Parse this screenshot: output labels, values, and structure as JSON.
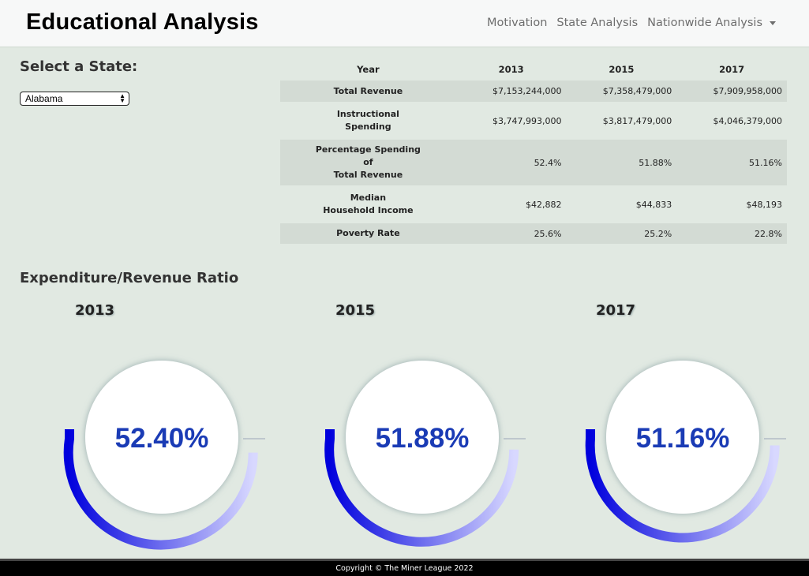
{
  "app": {
    "brand": "Educational Analysis"
  },
  "nav": {
    "items": [
      "Motivation",
      "State Analysis",
      "Nationwide Analysis"
    ]
  },
  "sidebar": {
    "select_label": "Select a State:",
    "selected_state": "Alabama"
  },
  "table": {
    "headers": [
      "Year",
      "2013",
      "2015",
      "2017"
    ],
    "rows": [
      {
        "label": [
          "Total Revenue"
        ],
        "values": [
          "$7,153,244,000",
          "$7,358,479,000",
          "$7,909,958,000"
        ]
      },
      {
        "label": [
          "Instructional",
          "Spending"
        ],
        "values": [
          "$3,747,993,000",
          "$3,817,479,000",
          "$4,046,379,000"
        ]
      },
      {
        "label": [
          "Percentage Spending",
          "of",
          "Total Revenue"
        ],
        "values": [
          "52.4%",
          "51.88%",
          "51.16%"
        ]
      },
      {
        "label": [
          "Median",
          "Household Income"
        ],
        "values": [
          "$42,882",
          "$44,833",
          "$48,193"
        ]
      },
      {
        "label": [
          "Poverty Rate"
        ],
        "values": [
          "25.6%",
          "25.2%",
          "22.8%"
        ]
      }
    ]
  },
  "ratio": {
    "title": "Expenditure/Revenue Ratio",
    "gauges": [
      {
        "year": "2013",
        "value": 52.4,
        "label": "52.40%"
      },
      {
        "year": "2015",
        "value": 51.88,
        "label": "51.88%"
      },
      {
        "year": "2017",
        "value": 51.16,
        "label": "51.16%"
      }
    ],
    "colors": {
      "start": "#0000dd",
      "end": "#d8d8ff",
      "text": "#1a3bb5"
    }
  },
  "footer": {
    "copyright": "Copyright © The Miner League 2022"
  }
}
